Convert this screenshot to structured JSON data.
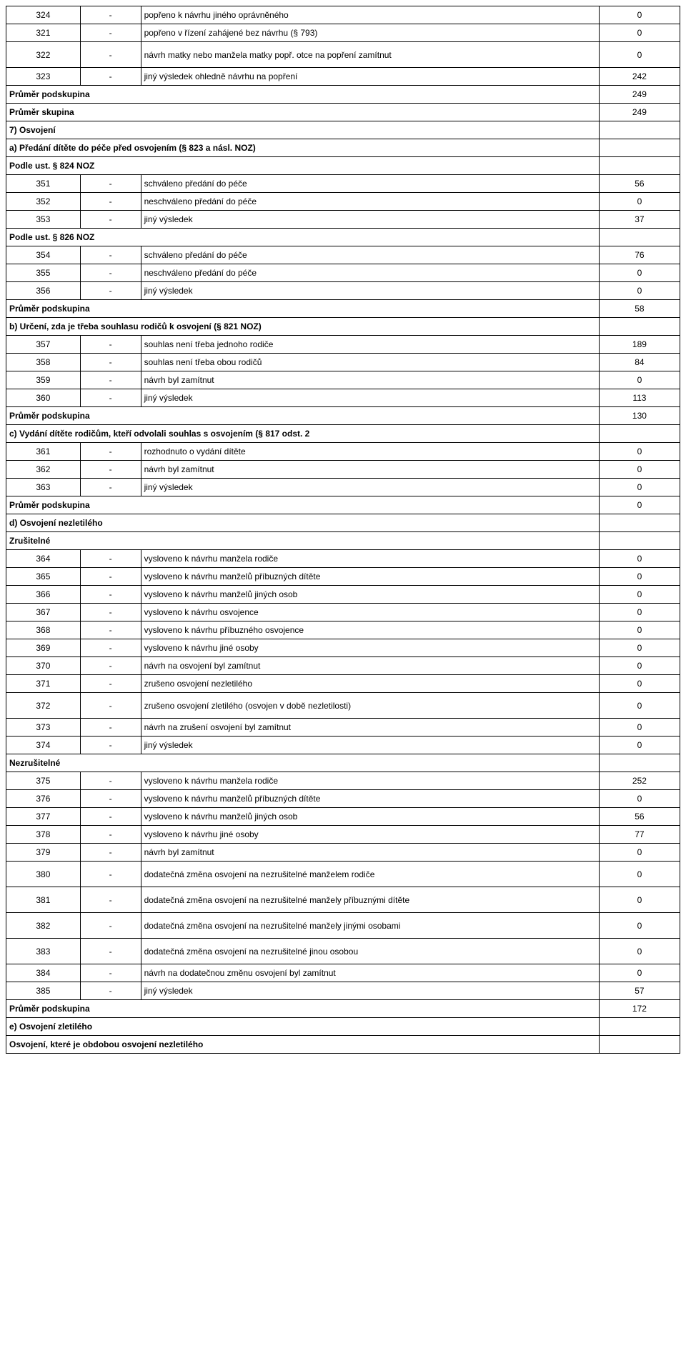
{
  "rows": [
    {
      "type": "data",
      "code": "324",
      "dash": "-",
      "desc": "popřeno k návrhu jiného oprávněného",
      "val": "0"
    },
    {
      "type": "data",
      "code": "321",
      "dash": "-",
      "desc": "popřeno v řízení zahájené bez návrhu (§ 793)",
      "val": "0"
    },
    {
      "type": "data",
      "code": "322",
      "dash": "-",
      "desc": "návrh matky nebo manžela matky popř. otce na popření zamítnut",
      "val": "0",
      "tall": true
    },
    {
      "type": "data",
      "code": "323",
      "dash": "-",
      "desc": "jiný výsledek ohledně návrhu na popření",
      "val": "242"
    },
    {
      "type": "header",
      "label": "Průměr podskupina",
      "val": "249"
    },
    {
      "type": "header",
      "label": "Průměr skupina",
      "val": "249"
    },
    {
      "type": "header",
      "label": "7) Osvojení",
      "val": ""
    },
    {
      "type": "header",
      "label": "a) Předání dítěte do péče před osvojením (§ 823 a násl. NOZ)",
      "val": ""
    },
    {
      "type": "header",
      "label": "Podle ust. § 824 NOZ",
      "val": ""
    },
    {
      "type": "data",
      "code": "351",
      "dash": "-",
      "desc": "schváleno předání do péče",
      "val": "56"
    },
    {
      "type": "data",
      "code": "352",
      "dash": "-",
      "desc": "neschváleno předání do péče",
      "val": "0"
    },
    {
      "type": "data",
      "code": "353",
      "dash": "-",
      "desc": "jiný výsledek",
      "val": "37"
    },
    {
      "type": "header",
      "label": "Podle ust. § 826 NOZ",
      "val": ""
    },
    {
      "type": "data",
      "code": "354",
      "dash": "-",
      "desc": "schváleno předání do péče",
      "val": "76"
    },
    {
      "type": "data",
      "code": "355",
      "dash": "-",
      "desc": "neschváleno předání do péče",
      "val": "0"
    },
    {
      "type": "data",
      "code": "356",
      "dash": "-",
      "desc": "jiný výsledek",
      "val": "0"
    },
    {
      "type": "header",
      "label": "Průměr podskupina",
      "val": "58"
    },
    {
      "type": "header",
      "label": "b) Určení, zda je třeba souhlasu rodičů k osvojení (§ 821 NOZ)",
      "val": ""
    },
    {
      "type": "data",
      "code": "357",
      "dash": "-",
      "desc": "souhlas není třeba jednoho rodiče",
      "val": "189"
    },
    {
      "type": "data",
      "code": "358",
      "dash": "-",
      "desc": "souhlas není třeba obou rodičů",
      "val": "84"
    },
    {
      "type": "data",
      "code": "359",
      "dash": "-",
      "desc": "návrh byl zamítnut",
      "val": "0"
    },
    {
      "type": "data",
      "code": "360",
      "dash": "-",
      "desc": "jiný výsledek",
      "val": "113"
    },
    {
      "type": "header",
      "label": "Průměr podskupina",
      "val": "130"
    },
    {
      "type": "header",
      "label": "c) Vydání dítěte rodičům, kteří odvolali souhlas s osvojením (§ 817 odst. 2",
      "val": ""
    },
    {
      "type": "data",
      "code": "361",
      "dash": "-",
      "desc": "rozhodnuto o vydání dítěte",
      "val": "0"
    },
    {
      "type": "data",
      "code": "362",
      "dash": "-",
      "desc": "návrh byl zamítnut",
      "val": "0"
    },
    {
      "type": "data",
      "code": "363",
      "dash": "-",
      "desc": "jiný výsledek",
      "val": "0"
    },
    {
      "type": "header",
      "label": "Průměr podskupina",
      "val": "0"
    },
    {
      "type": "header",
      "label": "d) Osvojení nezletilého",
      "val": ""
    },
    {
      "type": "header",
      "label": "Zrušitelné",
      "val": ""
    },
    {
      "type": "data",
      "code": "364",
      "dash": "-",
      "desc": "vysloveno k návrhu manžela rodiče",
      "val": "0"
    },
    {
      "type": "data",
      "code": "365",
      "dash": "-",
      "desc": "vysloveno k návrhu manželů příbuzných dítěte",
      "val": "0"
    },
    {
      "type": "data",
      "code": "366",
      "dash": "-",
      "desc": "vysloveno k návrhu manželů jiných osob",
      "val": "0"
    },
    {
      "type": "data",
      "code": "367",
      "dash": "-",
      "desc": "vysloveno k návrhu osvojence",
      "val": "0"
    },
    {
      "type": "data",
      "code": "368",
      "dash": "-",
      "desc": "vysloveno k návrhu příbuzného osvojence",
      "val": "0"
    },
    {
      "type": "data",
      "code": "369",
      "dash": "-",
      "desc": "vysloveno k návrhu jiné osoby",
      "val": "0"
    },
    {
      "type": "data",
      "code": "370",
      "dash": "-",
      "desc": "návrh na osvojení byl zamítnut",
      "val": "0"
    },
    {
      "type": "data",
      "code": "371",
      "dash": "-",
      "desc": "zrušeno osvojení nezletilého",
      "val": "0"
    },
    {
      "type": "data",
      "code": "372",
      "dash": "-",
      "desc": "zrušeno osvojení zletilého (osvojen v době nezletilosti)",
      "val": "0",
      "tall": true
    },
    {
      "type": "data",
      "code": "373",
      "dash": "-",
      "desc": "návrh na zrušení osvojení byl zamítnut",
      "val": "0"
    },
    {
      "type": "data",
      "code": "374",
      "dash": "-",
      "desc": "jiný výsledek",
      "val": "0"
    },
    {
      "type": "header",
      "label": "Nezrušitelné",
      "val": ""
    },
    {
      "type": "data",
      "code": "375",
      "dash": "-",
      "desc": "vysloveno k návrhu manžela rodiče",
      "val": "252"
    },
    {
      "type": "data",
      "code": "376",
      "dash": "-",
      "desc": "vysloveno k návrhu manželů příbuzných dítěte",
      "val": "0"
    },
    {
      "type": "data",
      "code": "377",
      "dash": "-",
      "desc": "vysloveno k návrhu manželů jiných osob",
      "val": "56"
    },
    {
      "type": "data",
      "code": "378",
      "dash": "-",
      "desc": "vysloveno k návrhu jiné osoby",
      "val": "77"
    },
    {
      "type": "data",
      "code": "379",
      "dash": "-",
      "desc": "návrh byl zamítnut",
      "val": "0"
    },
    {
      "type": "data",
      "code": "380",
      "dash": "-",
      "desc": "dodatečná změna osvojení na nezrušitelné manželem rodiče",
      "val": "0",
      "tall": true
    },
    {
      "type": "data",
      "code": "381",
      "dash": "-",
      "desc": "dodatečná změna osvojení na nezrušitelné manžely příbuznými dítěte",
      "val": "0",
      "tall": true
    },
    {
      "type": "data",
      "code": "382",
      "dash": "-",
      "desc": "dodatečná změna osvojení na nezrušitelné manžely jinými osobami",
      "val": "0",
      "tall": true
    },
    {
      "type": "data",
      "code": "383",
      "dash": "-",
      "desc": "dodatečná změna osvojení na nezrušitelné jinou osobou",
      "val": "0",
      "tall": true
    },
    {
      "type": "data",
      "code": "384",
      "dash": "-",
      "desc": "návrh na dodatečnou změnu osvojení byl zamítnut",
      "val": "0"
    },
    {
      "type": "data",
      "code": "385",
      "dash": "-",
      "desc": "jiný výsledek",
      "val": "57"
    },
    {
      "type": "header",
      "label": "Průměr podskupina",
      "val": "172"
    },
    {
      "type": "header",
      "label": "e) Osvojení zletilého",
      "val": ""
    },
    {
      "type": "header",
      "label": "Osvojení, které je obdobou osvojení nezletilého",
      "val": ""
    }
  ]
}
